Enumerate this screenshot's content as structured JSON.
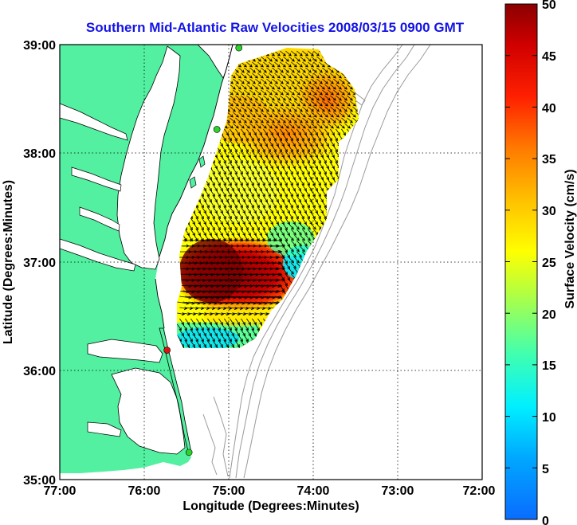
{
  "title": "Southern Mid-Atlantic Raw Velocities 2008/03/15 0900 GMT",
  "x_axis": {
    "label": "Longitude (Degrees:Minutes)",
    "ticks": [
      "77:00",
      "76:00",
      "75:00",
      "74:00",
      "73:00",
      "72:00"
    ]
  },
  "y_axis": {
    "label": "Latitude (Degrees:Minutes)",
    "ticks": [
      "39:00",
      "38:00",
      "37:00",
      "36:00",
      "35:00"
    ]
  },
  "colorbar": {
    "label": "Surface Velocity (cm/s)",
    "ticks": [
      "50",
      "45",
      "40",
      "35",
      "30",
      "25",
      "20",
      "15",
      "10",
      "5",
      "0"
    ],
    "range": [
      0,
      50
    ]
  },
  "map": {
    "lon_range": [
      -77,
      -72
    ],
    "lat_range": [
      35,
      39
    ],
    "grid": true,
    "land_color": "#52f0a0",
    "water_color": "#ffffff",
    "bathymetry_color": "#9a9a9a",
    "station_color_active": "#2bd42b",
    "station_color_alert": "#e01010",
    "vector_color": "#000000"
  },
  "stations": [
    {
      "lon": -74.88,
      "lat": 38.97,
      "status": "active"
    },
    {
      "lon": -75.14,
      "lat": 38.22,
      "status": "active"
    },
    {
      "lon": -75.73,
      "lat": 36.19,
      "status": "alert"
    },
    {
      "lon": -75.47,
      "lat": 35.25,
      "status": "active"
    }
  ]
}
